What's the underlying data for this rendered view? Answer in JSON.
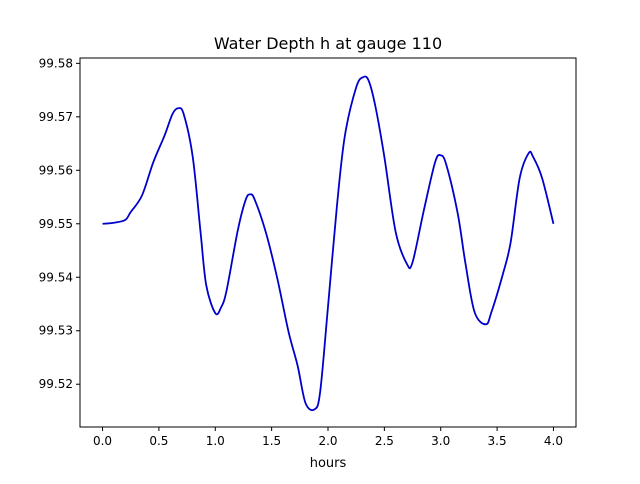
{
  "chart_data": {
    "type": "line",
    "title": "Water Depth h at gauge 110",
    "xlabel": "hours",
    "ylabel": "",
    "xlim": [
      -0.2,
      4.2
    ],
    "ylim": [
      99.512,
      99.581
    ],
    "x_ticks": [
      0.0,
      0.5,
      1.0,
      1.5,
      2.0,
      2.5,
      3.0,
      3.5,
      4.0
    ],
    "x_tick_labels": [
      "0.0",
      "0.5",
      "1.0",
      "1.5",
      "2.0",
      "2.5",
      "3.0",
      "3.5",
      "4.0"
    ],
    "y_ticks": [
      99.52,
      99.53,
      99.54,
      99.55,
      99.56,
      99.57,
      99.58
    ],
    "y_tick_labels": [
      "99.52",
      "99.53",
      "99.54",
      "99.55",
      "99.56",
      "99.57",
      "99.58"
    ],
    "grid": false,
    "series": [
      {
        "color": "#0000cc",
        "x": [
          0.0,
          0.1,
          0.2,
          0.25,
          0.35,
          0.45,
          0.55,
          0.62,
          0.67,
          0.72,
          0.8,
          0.87,
          0.92,
          1.0,
          1.05,
          1.1,
          1.2,
          1.27,
          1.31,
          1.35,
          1.45,
          1.55,
          1.65,
          1.73,
          1.8,
          1.88,
          1.93,
          2.0,
          2.08,
          2.15,
          2.25,
          2.31,
          2.36,
          2.42,
          2.5,
          2.6,
          2.7,
          2.75,
          2.85,
          2.95,
          3.0,
          3.05,
          3.15,
          3.22,
          3.3,
          3.4,
          3.45,
          3.55,
          3.62,
          3.7,
          3.78,
          3.82,
          3.9,
          4.0
        ],
        "y": [
          99.55,
          99.5502,
          99.5507,
          99.5522,
          99.5553,
          99.5615,
          99.5665,
          99.5705,
          99.5716,
          99.5705,
          99.5625,
          99.5483,
          99.5385,
          99.5333,
          99.5343,
          99.5375,
          99.5488,
          99.5545,
          99.5555,
          99.5545,
          99.5483,
          99.5398,
          99.5298,
          99.5235,
          99.5165,
          99.5153,
          99.5185,
          99.5345,
          99.5535,
          99.5665,
          99.5755,
          99.5774,
          99.5768,
          99.572,
          99.5625,
          99.5485,
          99.5425,
          99.5428,
          99.5525,
          99.5615,
          99.5628,
          99.561,
          99.552,
          99.5425,
          99.5335,
          99.5312,
          99.5335,
          99.5405,
          99.5465,
          99.5585,
          99.5632,
          99.5625,
          99.5585,
          99.55
        ]
      }
    ]
  }
}
